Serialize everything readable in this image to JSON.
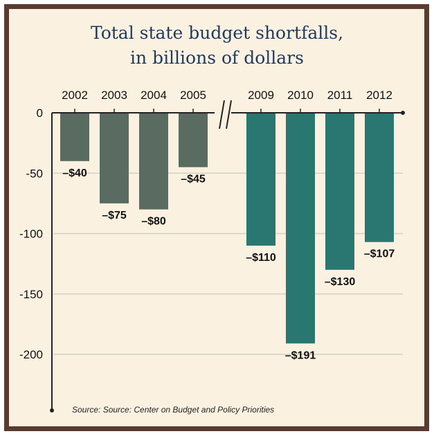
{
  "chart_data": {
    "type": "bar",
    "title": "Total state budget shortfalls, in billions of dollars",
    "title_lines": [
      "Total state budget shortfalls,",
      "in billions of dollars"
    ],
    "categories": [
      "2002",
      "2003",
      "2004",
      "2005",
      "2009",
      "2010",
      "2011",
      "2012"
    ],
    "values": [
      -40,
      -75,
      -80,
      -45,
      -110,
      -191,
      -130,
      -107
    ],
    "data_labels": [
      "–$40",
      "–$75",
      "–$80",
      "–$45",
      "–$110",
      "–$191",
      "–$130",
      "–$107"
    ],
    "yticks": [
      0,
      -50,
      -100,
      -150,
      -200
    ],
    "ytick_labels": [
      "0",
      "-50",
      "-100",
      "-150",
      "-200"
    ],
    "ylim": [
      -245,
      0
    ],
    "axis_break_after": "2005",
    "grid": true,
    "source": "Source: Source: Center on Budget and Policy Priorities",
    "colors": {
      "early": "#5a6b62",
      "late": "#2a7670",
      "title": "#1e3a5f",
      "frame": "#5a3b30"
    }
  }
}
